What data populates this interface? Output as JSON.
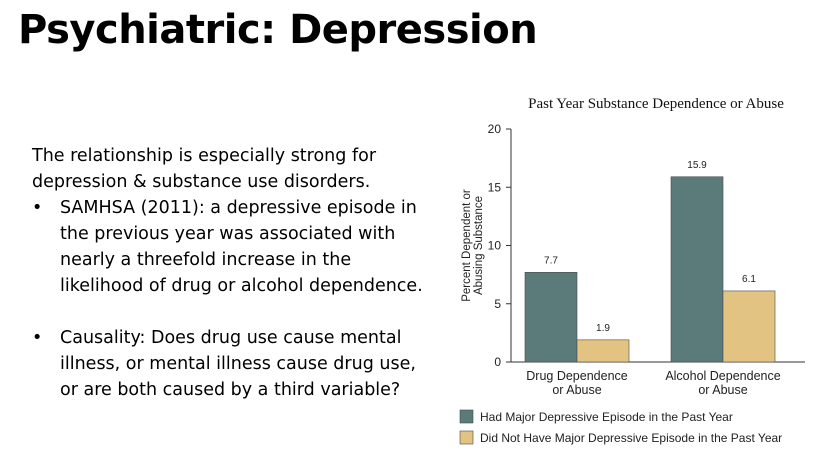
{
  "slide": {
    "title": "Psychiatric: Depression",
    "intro": "The relationship is especially strong for depression & substance use disorders.",
    "bullets": [
      "SAMHSA (2011):  a depressive episode in the previous year was associated with nearly a threefold increase in the likelihood of drug or alcohol dependence.",
      "Causality: Does drug use cause mental illness, or mental illness cause drug use, or are both caused by a third variable?"
    ],
    "bullet_symbol": "•"
  },
  "chart_data": {
    "type": "bar",
    "title": "Past Year Substance Dependence or Abuse",
    "ylabel": [
      "Percent Dependent or",
      "Abusing Substance"
    ],
    "xlabel": "",
    "ylim": [
      0,
      20
    ],
    "yticks": [
      0,
      5,
      10,
      15,
      20
    ],
    "categories": [
      [
        "Drug Dependence",
        "or Abuse"
      ],
      [
        "Alcohol Dependence",
        "or Abuse"
      ]
    ],
    "series": [
      {
        "name": "Had Major Depressive Episode in the Past Year",
        "values": [
          7.7,
          15.9
        ],
        "labels": [
          "7.7",
          "15.9"
        ],
        "color": "#5b7b7a"
      },
      {
        "name": "Did Not Have Major Depressive Episode in the Past Year",
        "values": [
          1.9,
          6.1
        ],
        "labels": [
          "1.9",
          "6.1"
        ],
        "color": "#e3c381"
      }
    ],
    "grid": false,
    "legend_position": "bottom"
  }
}
